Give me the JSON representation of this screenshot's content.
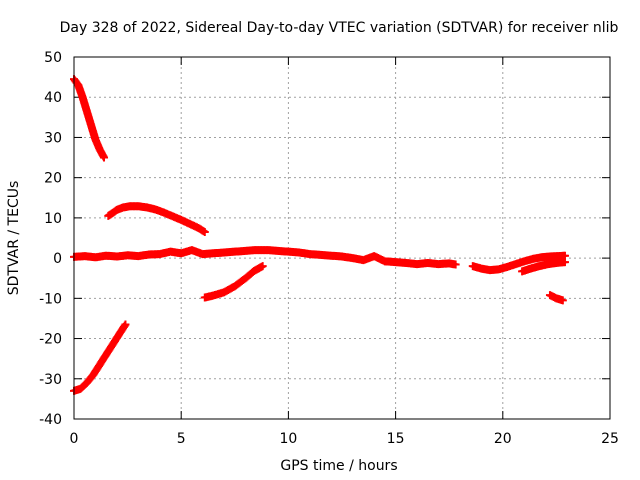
{
  "chart_data": {
    "type": "scatter",
    "title": "Day 328 of 2022, Sidereal Day-to-day VTEC variation (SDTVAR) for receiver nlib",
    "xlabel": "GPS time / hours",
    "ylabel": "SDTVAR / TECUs",
    "xlim": [
      0,
      25
    ],
    "ylim": [
      -40,
      50
    ],
    "xticks": [
      0,
      5,
      10,
      15,
      20,
      25
    ],
    "yticks": [
      -40,
      -30,
      -20,
      -10,
      0,
      10,
      20,
      30,
      40,
      50
    ],
    "xtick_labels": [
      "0",
      "5",
      "10",
      "15",
      "20",
      "25"
    ],
    "ytick_labels": [
      "-40",
      "-30",
      "-20",
      "-10",
      "0",
      "10",
      "20",
      "30",
      "40",
      "50"
    ],
    "grid": true,
    "legend": "none",
    "marker": "plus",
    "color": "#ff0000",
    "series": [
      {
        "name": "track-1",
        "x": [
          0.0,
          0.2,
          0.4,
          0.6,
          0.8,
          1.0,
          1.2,
          1.4
        ],
        "y": [
          44.5,
          43.0,
          40.0,
          36.5,
          33.0,
          29.5,
          27.0,
          25.0
        ]
      },
      {
        "name": "track-2",
        "x": [
          1.6,
          1.8,
          2.0,
          2.3,
          2.6,
          3.0,
          3.4,
          3.8,
          4.2,
          4.6,
          5.0,
          5.4,
          5.8,
          6.1
        ],
        "y": [
          10.5,
          11.2,
          12.0,
          12.6,
          12.9,
          12.9,
          12.6,
          12.1,
          11.3,
          10.4,
          9.5,
          8.5,
          7.5,
          6.5
        ]
      },
      {
        "name": "track-3",
        "x": [
          0.0,
          0.5,
          1.0,
          1.5,
          2.0,
          2.5,
          3.0,
          3.5,
          4.0,
          4.5,
          5.0,
          5.5,
          6.0,
          6.5,
          7.0,
          7.5,
          8.0,
          8.5,
          9.0,
          9.5,
          10.0,
          10.5,
          11.0,
          11.5,
          12.0,
          12.5,
          13.0,
          13.5,
          14.0,
          14.5,
          15.0,
          15.5,
          16.0,
          16.5,
          17.0,
          17.5,
          17.8
        ],
        "y": [
          0.3,
          0.5,
          0.2,
          0.6,
          0.4,
          0.7,
          0.5,
          0.9,
          1.0,
          1.6,
          1.2,
          2.0,
          1.0,
          1.2,
          1.4,
          1.6,
          1.8,
          2.0,
          2.0,
          1.8,
          1.6,
          1.4,
          1.0,
          0.8,
          0.6,
          0.4,
          0.0,
          -0.5,
          0.5,
          -0.8,
          -1.0,
          -1.2,
          -1.5,
          -1.2,
          -1.5,
          -1.3,
          -1.6
        ]
      },
      {
        "name": "track-4",
        "x": [
          6.1,
          6.5,
          7.0,
          7.5,
          8.0,
          8.4,
          8.8
        ],
        "y": [
          -9.8,
          -9.3,
          -8.5,
          -7.0,
          -5.0,
          -3.2,
          -2.0
        ]
      },
      {
        "name": "track-5",
        "x": [
          0.0,
          0.3,
          0.6,
          0.9,
          1.2,
          1.5,
          1.8,
          2.1,
          2.4
        ],
        "y": [
          -33.0,
          -32.5,
          -31.0,
          -29.0,
          -26.5,
          -24.0,
          -21.5,
          -19.0,
          -16.5
        ]
      },
      {
        "name": "track-6",
        "x": [
          18.6,
          19.0,
          19.4,
          19.8,
          20.2,
          20.6,
          21.0,
          21.4,
          21.8,
          22.2,
          22.6,
          22.9
        ],
        "y": [
          -2.0,
          -2.6,
          -3.0,
          -2.8,
          -2.2,
          -1.5,
          -0.8,
          -0.2,
          0.2,
          0.4,
          0.5,
          0.6
        ]
      },
      {
        "name": "track-7",
        "x": [
          20.9,
          21.3,
          21.7,
          22.1,
          22.5,
          22.9
        ],
        "y": [
          -3.3,
          -2.6,
          -2.0,
          -1.5,
          -1.2,
          -1.0
        ]
      },
      {
        "name": "track-8",
        "x": [
          22.2,
          22.5,
          22.8
        ],
        "y": [
          -9.2,
          -10.0,
          -10.5
        ]
      }
    ]
  }
}
